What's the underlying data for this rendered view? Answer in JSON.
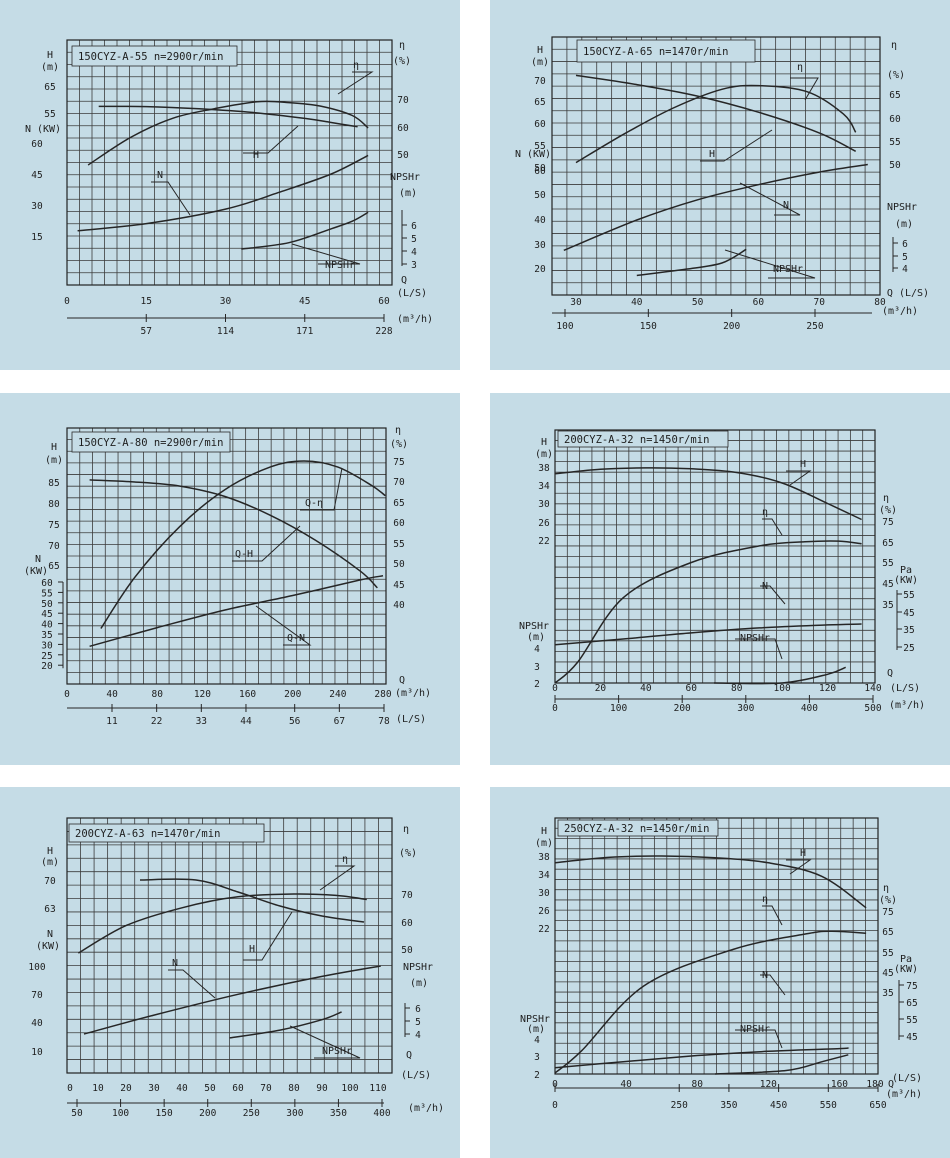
{
  "chart_data": [
    {
      "type": "line",
      "title": "150CYZ-A-55  n=2900r/min",
      "xlabel": "Q (L/S)",
      "xlabel2": "(m³/h)",
      "x_ticks": [
        "0",
        "15",
        "30",
        "45",
        "60"
      ],
      "x2_ticks": [
        "57",
        "114",
        "171",
        "228"
      ],
      "H_ticks": [
        "65",
        "55"
      ],
      "N_ticks": [
        "60",
        "45",
        "30",
        "15"
      ],
      "eff_ticks": [
        "70",
        "60",
        "50"
      ],
      "npsh_ticks": [
        "6",
        "5",
        "4",
        "3"
      ],
      "axis_labels": {
        "H": "H",
        "Hunit": "(m)",
        "N": "N (KW)",
        "eta": "η",
        "etaunit": "(%)",
        "npsh": "NPSHr",
        "npshunit": "(m)",
        "q": "Q",
        "qunit": "(L/S)"
      },
      "series": [
        {
          "name": "H",
          "x": [
            6,
            15,
            25,
            35,
            45,
            50,
            55
          ],
          "y": [
            56.5,
            56.4,
            55.5,
            54.0,
            51.5,
            49.8,
            48.0
          ],
          "unit": "m"
        },
        {
          "name": "η",
          "x": [
            4,
            12,
            20,
            28,
            36,
            42,
            48,
            54,
            57
          ],
          "y": [
            46,
            56,
            63,
            66.5,
            69,
            68.7,
            67.4,
            64,
            59.5
          ],
          "unit": "%"
        },
        {
          "name": "N",
          "x": [
            2,
            15,
            30,
            40,
            50,
            57
          ],
          "y": [
            17.5,
            21,
            28,
            36,
            45,
            54
          ],
          "unit": "KW"
        },
        {
          "name": "NPSHr",
          "x": [
            33,
            42,
            50,
            54,
            57
          ],
          "y": [
            4.1,
            4.6,
            5.7,
            6.3,
            7.0
          ],
          "unit": "m"
        }
      ],
      "curve_labels": [
        "η",
        "H",
        "N",
        "NPSHr"
      ]
    },
    {
      "type": "line",
      "title": "150CYZ-A-65  n=1470r/min",
      "xlabel": "Q (L/S)",
      "xlabel2": "(m³/h)",
      "x_ticks": [
        "30",
        "40",
        "50",
        "60",
        "70",
        "80"
      ],
      "x2_ticks": [
        "100",
        "150",
        "200",
        "250"
      ],
      "H_ticks": [
        "70",
        "65",
        "60",
        "55",
        "50"
      ],
      "N_ticks": [
        "60",
        "50",
        "40",
        "30",
        "20"
      ],
      "eff_ticks": [
        "65",
        "60",
        "55",
        "50"
      ],
      "npsh_ticks": [
        "6",
        "5",
        "4"
      ],
      "axis_labels": {
        "H": "H",
        "Hunit": "(m)",
        "N": "N (KW)",
        "eta": "η",
        "etaunit": "(%)",
        "npsh": "NPSHr",
        "npshunit": "(m)",
        "q": "Q (L/S)",
        "qunit": "(m³/h)"
      },
      "series": [
        {
          "name": "H",
          "x": [
            30,
            40,
            50,
            60,
            70,
            76
          ],
          "y": [
            71,
            69,
            66.5,
            63,
            58.5,
            54.5
          ],
          "unit": "m"
        },
        {
          "name": "η",
          "x": [
            30,
            38,
            46,
            54,
            60,
            68,
            74,
            76
          ],
          "y": [
            50.3,
            56.5,
            62,
            66,
            66.8,
            65.5,
            60.7,
            56.8
          ],
          "unit": "%"
        },
        {
          "name": "N",
          "x": [
            28,
            40,
            50,
            60,
            70,
            78
          ],
          "y": [
            27,
            39,
            47,
            53,
            58,
            61
          ],
          "unit": "KW"
        },
        {
          "name": "NPSHr",
          "x": [
            40,
            48,
            54,
            58
          ],
          "y": [
            3.4,
            3.9,
            4.4,
            5.5
          ],
          "unit": "m"
        }
      ],
      "curve_labels": [
        "η",
        "H",
        "N",
        "NPSHr"
      ]
    },
    {
      "type": "line",
      "title": "150CYZ-A-80  n=2900r/min",
      "xlabel": "Q (m³/h)",
      "xlabel2": "(L/S)",
      "x_ticks": [
        "0",
        "40",
        "80",
        "120",
        "160",
        "200",
        "240",
        "280"
      ],
      "x2_ticks": [
        "11",
        "22",
        "33",
        "44",
        "56",
        "67",
        "78"
      ],
      "H_ticks": [
        "85",
        "80",
        "75",
        "70",
        "65"
      ],
      "N_ticks": [
        "60",
        "55",
        "50",
        "45",
        "40",
        "35",
        "30",
        "25",
        "20"
      ],
      "eff_ticks": [
        "75",
        "70",
        "65",
        "60",
        "55",
        "50",
        "45",
        "40"
      ],
      "axis_labels": {
        "H": "H",
        "Hunit": "(m)",
        "N": "N",
        "Nunit": "(KW)",
        "eta": "η",
        "etaunit": "(%)",
        "q": "Q",
        "qunit": "(m³/h)",
        "q2unit": "(L/S)"
      },
      "series": [
        {
          "name": "Q-H",
          "x": [
            20,
            60,
            100,
            140,
            180,
            220,
            260,
            275
          ],
          "y": [
            85.5,
            85,
            84,
            81.5,
            77,
            71,
            63.5,
            59.5
          ],
          "unit": "m"
        },
        {
          "name": "Q-η",
          "x": [
            30,
            60,
            100,
            140,
            180,
            210,
            240,
            270,
            282
          ],
          "y": [
            34,
            46.5,
            59,
            68,
            73.5,
            75,
            73.5,
            69,
            66.5
          ],
          "unit": "%"
        },
        {
          "name": "Q-N",
          "x": [
            20,
            80,
            140,
            200,
            260,
            280
          ],
          "y": [
            29,
            38,
            46.5,
            53.5,
            61,
            63
          ],
          "unit": "KW"
        }
      ],
      "curve_labels": [
        "Q-η",
        "Q-H",
        "Q-N"
      ]
    },
    {
      "type": "line",
      "title": "200CYZ-A-32  n=1450r/min",
      "xlabel": "Q (L/S)",
      "xlabel2": "(m³/h)",
      "x_ticks": [
        "0",
        "20",
        "40",
        "60",
        "80",
        "100",
        "120",
        "140"
      ],
      "x2_ticks": [
        "0",
        "100",
        "200",
        "300",
        "400",
        "500"
      ],
      "H_ticks": [
        "38",
        "34",
        "30",
        "26",
        "22"
      ],
      "npsh_ticks": [
        "4",
        "3",
        "2"
      ],
      "eff_ticks": [
        "75",
        "65",
        "55",
        "45",
        "35"
      ],
      "pa_ticks": [
        "55",
        "45",
        "35",
        "25"
      ],
      "axis_labels": {
        "H": "H",
        "Hunit": "(m)",
        "eta": "η",
        "etaunit": "(%)",
        "pa": "Pa",
        "paunit": "(KW)",
        "npsh": "NPSHr",
        "npshunit": "(m)",
        "q": "Q",
        "qunit": "(L/S)",
        "q2unit": "(m³/h)"
      },
      "series": [
        {
          "name": "H",
          "x": [
            0,
            20,
            40,
            60,
            80,
            100,
            120,
            135
          ],
          "y": [
            36.5,
            37.5,
            37.8,
            37.6,
            36.8,
            34.5,
            30,
            26.5
          ],
          "unit": "m"
        },
        {
          "name": "η",
          "x": [
            0,
            10,
            30,
            60,
            90,
            110,
            125,
            135
          ],
          "y": [
            -5,
            7,
            38,
            55,
            63,
            65,
            65.3,
            64
          ],
          "unit": "%"
        },
        {
          "name": "N",
          "x": [
            0,
            30,
            60,
            90,
            120,
            135
          ],
          "y": [
            26.3,
            29.5,
            33,
            35.8,
            37.5,
            38
          ],
          "unit": "KW"
        },
        {
          "name": "NPSHr",
          "x": [
            70,
            100,
            120,
            128
          ],
          "y": [
            1.8,
            2.0,
            2.5,
            2.9
          ],
          "unit": "m"
        }
      ],
      "curve_labels": [
        "H",
        "η",
        "N",
        "NPSHr"
      ]
    },
    {
      "type": "line",
      "title": "200CYZ-A-63  n=1470r/min",
      "xlabel": "Q (L/S)",
      "xlabel2": "(m³/h)",
      "x_ticks": [
        "0",
        "10",
        "20",
        "30",
        "40",
        "50",
        "60",
        "70",
        "80",
        "90",
        "100",
        "110"
      ],
      "x2_ticks": [
        "50",
        "100",
        "150",
        "200",
        "250",
        "300",
        "350",
        "400"
      ],
      "H_ticks": [
        "70",
        "63"
      ],
      "N_ticks": [
        "100",
        "70",
        "40",
        "10"
      ],
      "eff_ticks": [
        "70",
        "60",
        "50"
      ],
      "npsh_ticks": [
        "6",
        "5",
        "4"
      ],
      "axis_labels": {
        "H": "H",
        "Hunit": "(m)",
        "N": "N",
        "Nunit": "(KW)",
        "eta": "η",
        "etaunit": "(%)",
        "npsh": "NPSHr",
        "npshunit": "(m)",
        "q": "Q",
        "qunit": "(L/S)",
        "q2unit": "(m³/h)"
      },
      "series": [
        {
          "name": "H",
          "x": [
            25,
            45,
            60,
            75,
            90,
            105
          ],
          "y": [
            70,
            70,
            67,
            63.5,
            61,
            59.5
          ],
          "unit": "m"
        },
        {
          "name": "η",
          "x": [
            3,
            20,
            40,
            60,
            80,
            95,
            106
          ],
          "y": [
            48.5,
            58.5,
            65,
            69,
            70,
            69.5,
            68
          ],
          "unit": "%"
        },
        {
          "name": "N",
          "x": [
            5,
            30,
            60,
            90,
            111
          ],
          "y": [
            28,
            48,
            70,
            89,
            100
          ],
          "unit": "KW"
        },
        {
          "name": "NPSHr",
          "x": [
            57,
            75,
            90,
            97
          ],
          "y": [
            3.7,
            4.3,
            5.1,
            5.7
          ],
          "unit": "m"
        }
      ],
      "curve_labels": [
        "η",
        "H",
        "N",
        "NPSHr"
      ]
    },
    {
      "type": "line",
      "title": "250CYZ-A-32  n=1450r/min",
      "xlabel": "Q (L/S)",
      "xlabel2": "(m³/h)",
      "x_ticks": [
        "0",
        "40",
        "80",
        "120",
        "160",
        "180"
      ],
      "x2_ticks": [
        "0",
        "250",
        "350",
        "450",
        "550",
        "650"
      ],
      "H_ticks": [
        "38",
        "34",
        "30",
        "26",
        "22"
      ],
      "npsh_ticks": [
        "4",
        "3",
        "2"
      ],
      "eff_ticks": [
        "75",
        "65",
        "55",
        "45",
        "35"
      ],
      "pa_ticks": [
        "75",
        "65",
        "55",
        "45"
      ],
      "axis_labels": {
        "H": "H",
        "Hunit": "(m)",
        "eta": "η",
        "etaunit": "(%)",
        "pa": "Pa",
        "paunit": "(KW)",
        "npsh": "NPSHr",
        "npshunit": "(m)",
        "q": "Q",
        "qunit": "(L/S)",
        "q2unit": "(m³/h)"
      },
      "series": [
        {
          "name": "H",
          "x": [
            0,
            30,
            60,
            90,
            120,
            150,
            175
          ],
          "y": [
            36.5,
            37.7,
            38,
            37.6,
            36.5,
            33.5,
            26.5
          ],
          "unit": "m"
        },
        {
          "name": "η",
          "x": [
            0,
            15,
            50,
            100,
            140,
            155,
            175
          ],
          "y": [
            -5,
            6,
            38,
            56,
            63.5,
            65,
            64
          ],
          "unit": "%"
        },
        {
          "name": "N",
          "x": [
            0,
            40,
            80,
            120,
            160,
            165
          ],
          "y": [
            26.3,
            30,
            33.5,
            36,
            37.6,
            38
          ],
          "unit": "KW"
        },
        {
          "name": "NPSHr",
          "x": [
            90,
            130,
            150,
            165
          ],
          "y": [
            2.0,
            2.2,
            2.7,
            3.1
          ],
          "unit": "m"
        }
      ],
      "curve_labels": [
        "H",
        "η",
        "N",
        "NPSHr"
      ]
    }
  ]
}
